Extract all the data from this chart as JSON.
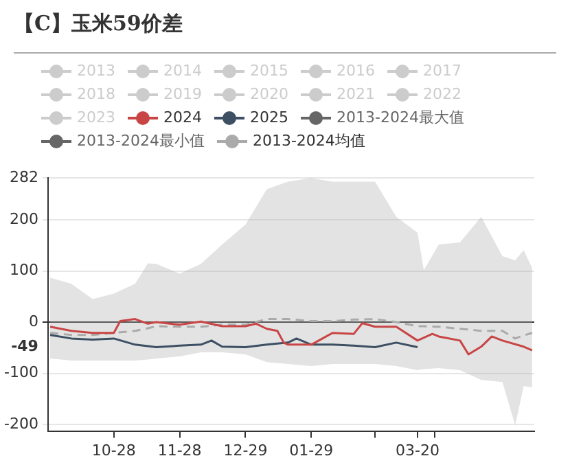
{
  "chart_data": {
    "type": "line",
    "title": "【C】玉米59价差",
    "legend": "top",
    "grid": "y",
    "marker": "none",
    "xlim": [
      "2024-09-27",
      "2025-05-14"
    ],
    "xticks": [
      {
        "value": "2024-10-28",
        "label": "10-28"
      },
      {
        "value": "2024-11-28",
        "label": "11-28"
      },
      {
        "value": "2024-12-29",
        "label": "12-29"
      },
      {
        "value": "2025-01-29",
        "label": "01-29"
      },
      {
        "value": "2025-02-28",
        "label": null
      },
      {
        "value": "2025-03-20",
        "label": "03-20"
      },
      {
        "value": "2025-03-28",
        "label": null
      }
    ],
    "ylim": [
      -213,
      282
    ],
    "yticks": [
      -200,
      -100,
      {
        "value": -49,
        "label": "-49"
      },
      0,
      100,
      200,
      282
    ],
    "series": [
      {
        "name": "2013",
        "color": "#cccccc"
      },
      {
        "name": "2014",
        "color": "#cccccc"
      },
      {
        "name": "2015",
        "color": "#cccccc"
      },
      {
        "name": "2016",
        "color": "#cccccc"
      },
      {
        "name": "2017",
        "color": "#cccccc"
      },
      {
        "name": "2018",
        "color": "#cccccc"
      },
      {
        "name": "2019",
        "color": "#cccccc"
      },
      {
        "name": "2020",
        "color": "#cccccc"
      },
      {
        "name": "2021",
        "color": "#cccccc"
      },
      {
        "name": "2022",
        "color": "#cccccc"
      },
      {
        "name": "2023",
        "color": "#cccccc"
      },
      {
        "name": "2024",
        "color": "#c94545",
        "x": [
          "2024-09-28",
          "2024-10-08",
          "2024-10-18",
          "2024-10-28",
          "2024-10-31",
          "2024-11-07",
          "2024-11-13",
          "2024-11-17",
          "2024-11-28",
          "2024-12-08",
          "2024-12-18",
          "2024-12-29",
          "2025-01-03",
          "2025-01-08",
          "2025-01-13",
          "2025-01-16",
          "2025-01-18",
          "2025-01-29",
          "2025-02-05",
          "2025-02-08",
          "2025-02-18",
          "2025-02-22",
          "2025-02-28",
          "2025-03-10",
          "2025-03-20",
          "2025-03-27",
          "2025-03-30",
          "2025-04-09",
          "2025-04-13",
          "2025-04-19",
          "2025-04-24",
          "2025-04-29",
          "2025-05-09",
          "2025-05-13"
        ],
        "values": [
          -9,
          -17,
          -21,
          -21,
          2,
          6,
          -3,
          0,
          -5,
          1,
          -8,
          -8,
          -3,
          -13,
          -17,
          -40,
          -44,
          -44,
          -28,
          -21,
          -23,
          -2,
          -9,
          -9,
          -36,
          -23,
          -28,
          -36,
          -63,
          -48,
          -28,
          -36,
          -48,
          -55
        ]
      },
      {
        "name": "2025",
        "color": "#3d4f63",
        "x": [
          "2024-09-28",
          "2024-10-08",
          "2024-10-18",
          "2024-10-28",
          "2024-11-07",
          "2024-11-17",
          "2024-11-28",
          "2024-12-08",
          "2024-12-13",
          "2024-12-18",
          "2024-12-29",
          "2025-01-08",
          "2025-01-18",
          "2025-01-22",
          "2025-01-29",
          "2025-02-08",
          "2025-02-18",
          "2025-02-28",
          "2025-03-10",
          "2025-03-20"
        ],
        "values": [
          -25,
          -32,
          -34,
          -32,
          -44,
          -49,
          -46,
          -44,
          -36,
          -48,
          -49,
          -44,
          -40,
          -32,
          -44,
          -44,
          -46,
          -49,
          -40,
          -49
        ]
      },
      {
        "name": "2013-2024最大值",
        "color": "#666666"
      },
      {
        "name": "2013-2024最小值",
        "color": "#666666"
      },
      {
        "name": "2013-2024均值",
        "color": "#aaaaaa",
        "line_style": "dashed",
        "x": [
          "2024-09-28",
          "2024-10-08",
          "2024-10-18",
          "2024-10-28",
          "2024-11-07",
          "2024-11-13",
          "2024-11-17",
          "2024-11-28",
          "2024-12-08",
          "2024-12-18",
          "2024-12-29",
          "2025-01-08",
          "2025-01-18",
          "2025-01-29",
          "2025-02-08",
          "2025-02-18",
          "2025-02-28",
          "2025-03-10",
          "2025-03-20",
          "2025-03-23",
          "2025-03-30",
          "2025-04-09",
          "2025-04-19",
          "2025-04-29",
          "2025-05-05",
          "2025-05-09",
          "2025-05-13"
        ],
        "values": [
          -21,
          -25,
          -25,
          -21,
          -17,
          -12,
          -8,
          -9,
          -9,
          -5,
          -5,
          6,
          6,
          2,
          2,
          5,
          6,
          0,
          -8,
          -8,
          -9,
          -13,
          -17,
          -17,
          -32,
          -26,
          -21
        ],
        "upper": [
          87,
          75,
          45,
          56,
          75,
          115,
          114,
          95,
          114,
          152,
          191,
          260,
          275,
          282,
          275,
          275,
          275,
          206,
          175,
          102,
          152,
          156,
          206,
          129,
          121,
          141,
          106
        ],
        "lower": [
          -71,
          -75,
          -75,
          -75,
          -75,
          -73,
          -71,
          -67,
          -59,
          -59,
          -63,
          -78,
          -82,
          -86,
          -82,
          -82,
          -82,
          -86,
          -94,
          -92,
          -90,
          -94,
          -113,
          -117,
          -202,
          -125,
          -128
        ]
      }
    ]
  }
}
